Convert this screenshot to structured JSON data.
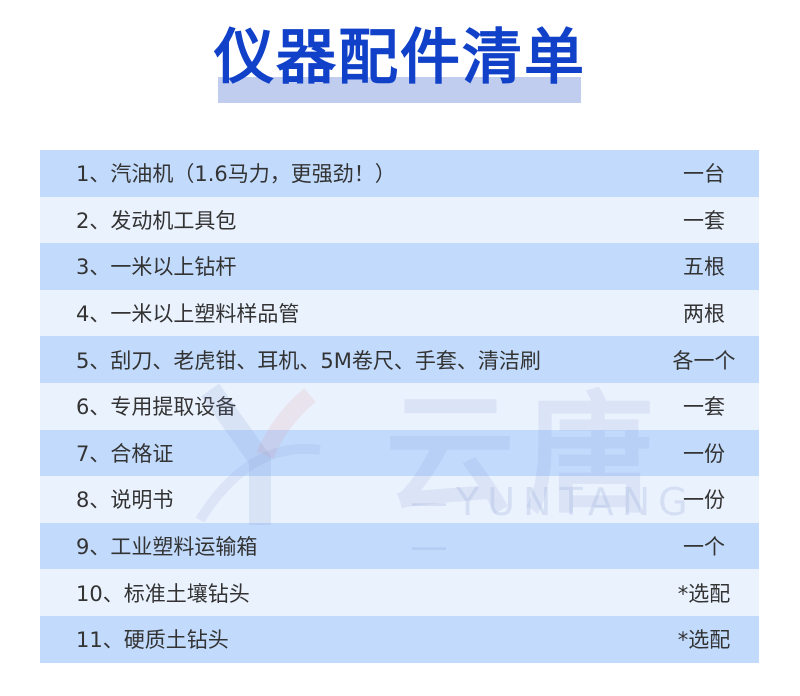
{
  "title": "仪器配件清单",
  "colors": {
    "title": "#1041c8",
    "row_dark": "#c2dbfd",
    "row_light": "#eaf2fe",
    "title_band": "#c0cdef"
  },
  "watermark": {
    "brand": "云唐",
    "brand_latin": "—YUNTANG—"
  },
  "items": [
    {
      "name": "1、汽油机（1.6马力，更强劲！）",
      "qty": "一台"
    },
    {
      "name": "2、发动机工具包",
      "qty": "一套"
    },
    {
      "name": "3、一米以上钻杆",
      "qty": "五根"
    },
    {
      "name": "4、一米以上塑料样品管",
      "qty": "两根"
    },
    {
      "name": "5、刮刀、老虎钳、耳机、5M卷尺、手套、清洁刷",
      "qty": "各一个"
    },
    {
      "name": "6、专用提取设备",
      "qty": "一套"
    },
    {
      "name": "7、合格证",
      "qty": "一份"
    },
    {
      "name": "8、说明书",
      "qty": "一份"
    },
    {
      "name": "9、工业塑料运输箱",
      "qty": "一个"
    },
    {
      "name": "10、标准土壤钻头",
      "qty": "*选配"
    },
    {
      "name": "11、硬质土钻头",
      "qty": "*选配"
    }
  ]
}
